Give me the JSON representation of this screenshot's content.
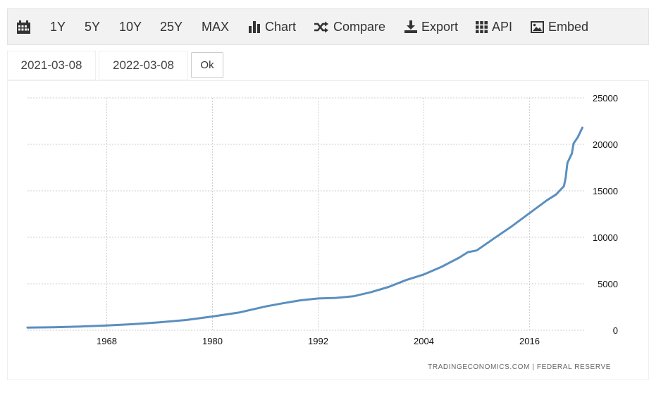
{
  "toolbar": {
    "items": [
      {
        "id": "calendar",
        "label": "",
        "icon": "calendar-icon"
      },
      {
        "id": "1y",
        "label": "1Y"
      },
      {
        "id": "5y",
        "label": "5Y"
      },
      {
        "id": "10y",
        "label": "10Y"
      },
      {
        "id": "25y",
        "label": "25Y"
      },
      {
        "id": "max",
        "label": "MAX"
      },
      {
        "id": "chart",
        "label": "Chart",
        "icon": "bar-chart-icon"
      },
      {
        "id": "compare",
        "label": "Compare",
        "icon": "shuffle-icon"
      },
      {
        "id": "export",
        "label": "Export",
        "icon": "download-icon"
      },
      {
        "id": "api",
        "label": "API",
        "icon": "grid-icon"
      },
      {
        "id": "embed",
        "label": "Embed",
        "icon": "image-icon"
      }
    ]
  },
  "date_range": {
    "start": "2021-03-08",
    "end": "2022-03-08",
    "ok_label": "Ok"
  },
  "credit": "TRADINGECONOMICS.COM | FEDERAL RESERVE",
  "colors": {
    "line": "#5b8fbf",
    "toolbar_bg": "#f2f2f2"
  },
  "chart_data": {
    "type": "line",
    "title": "",
    "xlabel": "",
    "ylabel": "",
    "xlim": [
      1959,
      2022.2
    ],
    "ylim": [
      0,
      25000
    ],
    "x_ticks": [
      1968,
      1980,
      1992,
      2004,
      2016
    ],
    "y_ticks": [
      0,
      5000,
      10000,
      15000,
      20000,
      25000
    ],
    "grid": true,
    "y_axis_position": "right",
    "series": [
      {
        "x": [
          1959,
          1962,
          1965,
          1968,
          1971,
          1974,
          1977,
          1980,
          1983,
          1986,
          1988,
          1990,
          1992,
          1994,
          1996,
          1998,
          2000,
          2002,
          2004,
          2006,
          2008,
          2009,
          2010,
          2012,
          2014,
          2016,
          2018,
          2019,
          2019.9,
          2020.1,
          2020.3,
          2020.8,
          2021,
          2021.5,
          2022
        ],
        "y": [
          290,
          320,
          400,
          510,
          650,
          850,
          1100,
          1480,
          1900,
          2550,
          2900,
          3220,
          3420,
          3480,
          3650,
          4100,
          4660,
          5400,
          6000,
          6820,
          7800,
          8400,
          8580,
          9900,
          11200,
          12600,
          14000,
          14600,
          15500,
          16400,
          18000,
          19000,
          20100,
          20800,
          21800
        ]
      }
    ]
  }
}
